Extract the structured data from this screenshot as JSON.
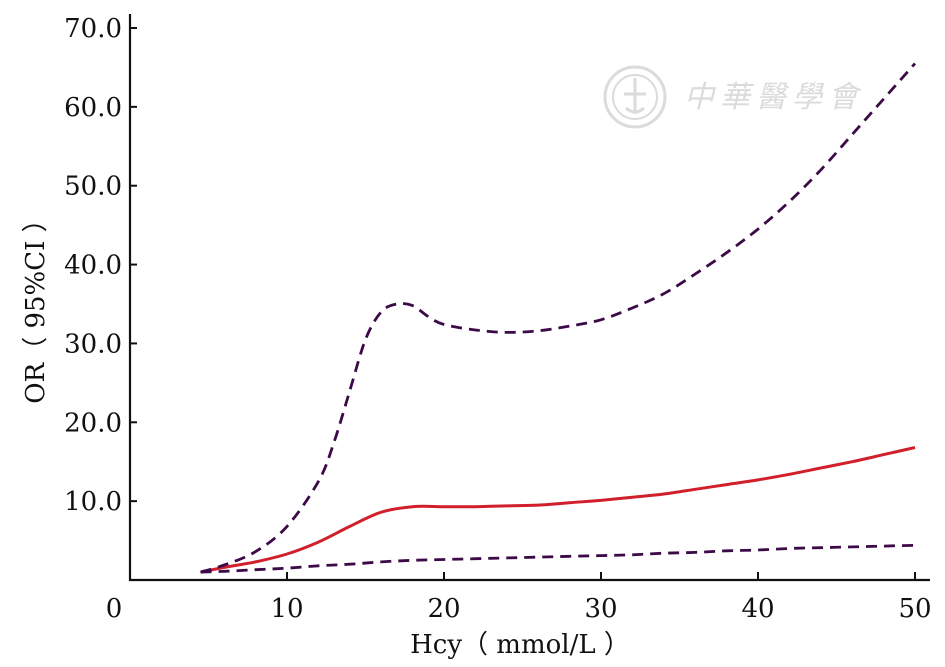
{
  "chart_data": {
    "type": "line",
    "xlabel": "Hcy（ mmol/L ）",
    "ylabel": "OR（ 95%CI ）",
    "xlim": [
      0,
      50
    ],
    "ylim": [
      0,
      70
    ],
    "x_ticks": [
      "0",
      "10",
      "20",
      "30",
      "40",
      "50"
    ],
    "y_ticks": [
      "10.0",
      "20.0",
      "30.0",
      "40.0",
      "50.0",
      "60.0",
      "70.0"
    ],
    "grid": false,
    "series": [
      {
        "style": "solid",
        "color": "#d11f2b",
        "x": [
          4.5,
          6,
          8,
          10,
          12,
          14,
          16,
          18,
          20,
          22,
          24,
          26,
          28,
          30,
          32,
          34,
          36,
          38,
          40,
          42,
          44,
          46,
          48,
          50
        ],
        "y": [
          1.0,
          1.6,
          2.3,
          3.3,
          4.8,
          6.8,
          8.6,
          9.3,
          9.3,
          9.3,
          9.4,
          9.5,
          9.8,
          10.1,
          10.5,
          10.9,
          11.5,
          12.1,
          12.7,
          13.4,
          14.2,
          15.0,
          15.9,
          16.8
        ]
      },
      {
        "style": "dashed",
        "color": "#3d0a48",
        "x": [
          4.5,
          6,
          8,
          10,
          12,
          13,
          14,
          15,
          16,
          17,
          18,
          19,
          20,
          22,
          24,
          26,
          28,
          30,
          32,
          34,
          36,
          38,
          40,
          42,
          44,
          46,
          48,
          50
        ],
        "y": [
          1.0,
          1.9,
          3.6,
          6.8,
          12.5,
          17.5,
          24.0,
          30.5,
          34.0,
          35.0,
          34.8,
          33.4,
          32.4,
          31.7,
          31.4,
          31.6,
          32.2,
          33.0,
          34.5,
          36.3,
          38.8,
          41.5,
          44.5,
          48.0,
          52.0,
          56.5,
          61.0,
          65.5
        ]
      },
      {
        "style": "dashed",
        "color": "#3d0a48",
        "x": [
          4.5,
          6,
          8,
          10,
          12,
          14,
          16,
          18,
          20,
          22,
          24,
          26,
          28,
          30,
          32,
          34,
          36,
          38,
          40,
          42,
          44,
          46,
          48,
          50
        ],
        "y": [
          1.0,
          1.1,
          1.3,
          1.5,
          1.8,
          2.0,
          2.3,
          2.5,
          2.6,
          2.7,
          2.8,
          2.9,
          3.0,
          3.1,
          3.2,
          3.4,
          3.5,
          3.7,
          3.8,
          4.0,
          4.1,
          4.2,
          4.3,
          4.4
        ]
      }
    ]
  },
  "watermark": {
    "text": "中華醫學會"
  }
}
